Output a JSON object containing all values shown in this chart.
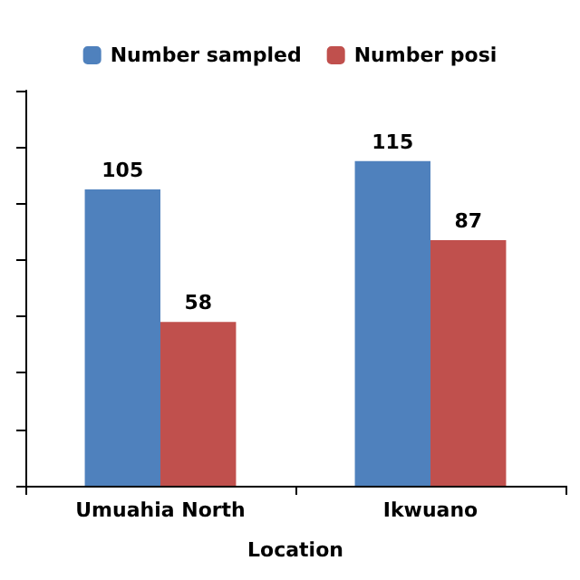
{
  "chart_data": {
    "type": "bar",
    "xlabel": "Location",
    "categories": [
      "Umuahia North",
      "Ikwuano"
    ],
    "series": [
      {
        "name": "Number sampled",
        "color": "#4f81bd",
        "values": [
          105,
          115
        ]
      },
      {
        "name": "Number posi",
        "color": "#c0504d",
        "values": [
          58,
          87
        ]
      }
    ],
    "ylim": [
      0,
      140
    ],
    "yticks": [
      {
        "value": 0,
        "label": null
      },
      {
        "value": 20,
        "label": null
      },
      {
        "value": 40,
        "label": null
      },
      {
        "value": 60,
        "label": null
      },
      {
        "value": 80,
        "label": null
      },
      {
        "value": 100,
        "label": null
      },
      {
        "value": 120,
        "label": null
      },
      {
        "value": 140,
        "label": null
      }
    ],
    "tick_labels": "x",
    "data_labels": true,
    "grid": false,
    "legend": "top"
  }
}
